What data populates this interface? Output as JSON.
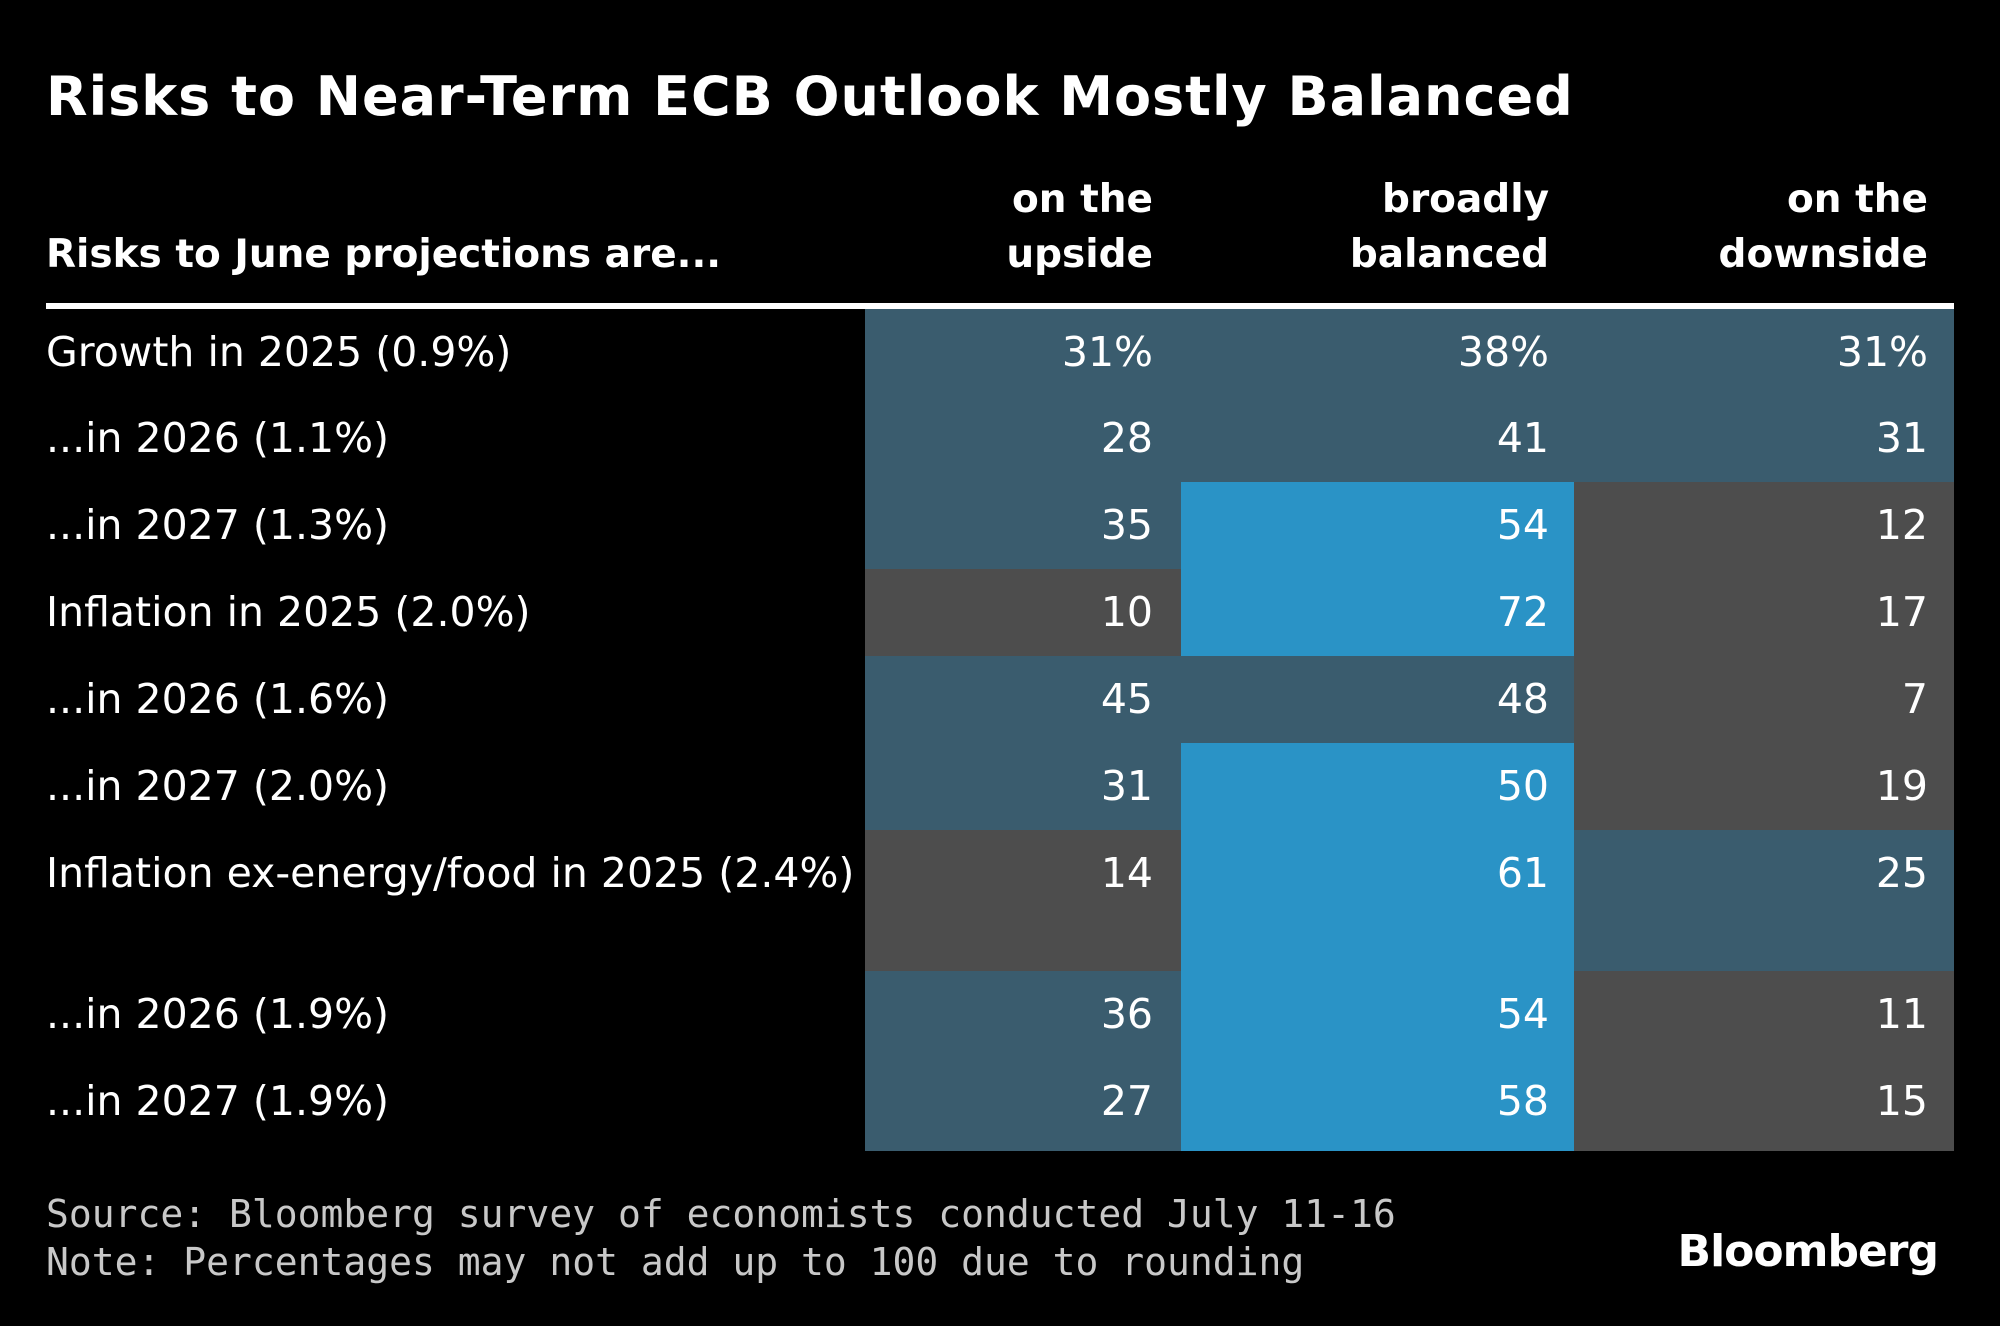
{
  "title": "Risks to Near-Term ECB Outlook Mostly Balanced",
  "source": "Source: Bloomberg survey of economists conducted July 11-16",
  "note": "Note: Percentages may not add up to 100 due to rounding",
  "logo": "Bloomberg",
  "colors": {
    "background": "#000000",
    "low": "#4d4d4d",
    "mid": "#3a5c6e",
    "high": "#2a93c6"
  },
  "chart_data": {
    "type": "table",
    "stub_header": "Risks to June projections are...",
    "columns": [
      "on the\nupside",
      "broadly\nbalanced",
      "on the\ndownside"
    ],
    "rows": [
      {
        "label": "Growth in 2025 (0.9%)",
        "values": [
          31,
          38,
          31
        ],
        "display": [
          "31%",
          "38%",
          "31%"
        ]
      },
      {
        "label": "...in 2026 (1.1%)",
        "values": [
          28,
          41,
          31
        ],
        "display": [
          "28",
          "41",
          "31"
        ]
      },
      {
        "label": "...in 2027 (1.3%)",
        "values": [
          35,
          54,
          12
        ],
        "display": [
          "35",
          "54",
          "12"
        ]
      },
      {
        "label": "Inflation in 2025 (2.0%)",
        "values": [
          10,
          72,
          17
        ],
        "display": [
          "10",
          "72",
          "17"
        ]
      },
      {
        "label": "...in 2026 (1.6%)",
        "values": [
          45,
          48,
          7
        ],
        "display": [
          "45",
          "48",
          "7"
        ]
      },
      {
        "label": "...in 2027 (2.0%)",
        "values": [
          31,
          50,
          19
        ],
        "display": [
          "31",
          "50",
          "19"
        ]
      },
      {
        "label": "Inflation ex-energy/food in 2025 (2.4%)",
        "values": [
          14,
          61,
          25
        ],
        "display": [
          "14",
          "61",
          "25"
        ]
      },
      {
        "label": "...in 2026 (1.9%)",
        "values": [
          36,
          54,
          11
        ],
        "display": [
          "36",
          "54",
          "11"
        ]
      },
      {
        "label": "...in 2027 (1.9%)",
        "values": [
          27,
          58,
          15
        ],
        "display": [
          "27",
          "58",
          "15"
        ]
      }
    ],
    "color_bins": {
      "low_max": 20,
      "high_min": 50
    }
  }
}
